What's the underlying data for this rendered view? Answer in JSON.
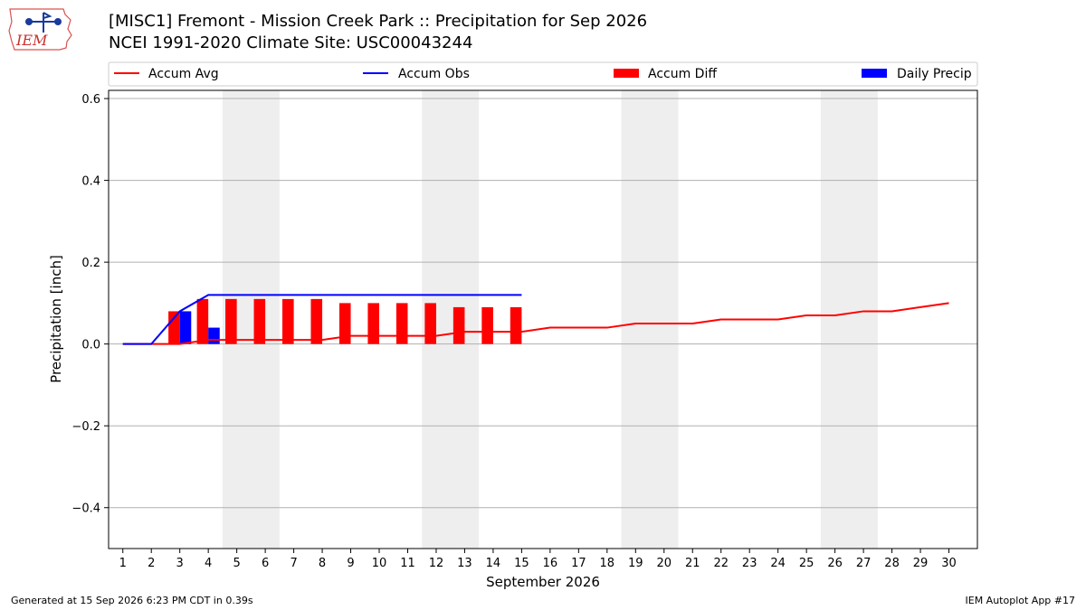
{
  "header": {
    "logo_text": "IEM",
    "title_line1": "[MISC1] Fremont - Mission Creek Park :: Precipitation for Sep 2026",
    "title_line2": "NCEI 1991-2020 Climate Site: USC00043244"
  },
  "footer": {
    "left": "Generated at 15 Sep 2026 6:23 PM CDT in 0.39s",
    "right": "IEM Autoplot App #17"
  },
  "colors": {
    "accum_avg": "#ff0000",
    "accum_obs": "#0000ff",
    "accum_diff": "#ff0000",
    "daily_precip": "#0000ff",
    "weekend_shade": "#eeeeee",
    "grid": "#b0b0b0"
  },
  "chart_data": {
    "type": "bar",
    "xlabel": "September 2026",
    "ylabel": "Precipitation [inch]",
    "xlim": [
      0.5,
      31
    ],
    "ylim": [
      -0.5,
      0.62
    ],
    "yticks": [
      -0.4,
      -0.2,
      0.0,
      0.2,
      0.4,
      0.6
    ],
    "ytick_labels": [
      "−0.4",
      "−0.2",
      "0.0",
      "0.2",
      "0.4",
      "0.6"
    ],
    "xticks": [
      1,
      2,
      3,
      4,
      5,
      6,
      7,
      8,
      9,
      10,
      11,
      12,
      13,
      14,
      15,
      16,
      17,
      18,
      19,
      20,
      21,
      22,
      23,
      24,
      25,
      26,
      27,
      28,
      29,
      30
    ],
    "grid": "horizontal",
    "legend_placement": "top",
    "weekend_shaded_days": [
      [
        5,
        6
      ],
      [
        12,
        13
      ],
      [
        19,
        20
      ],
      [
        26,
        27
      ]
    ],
    "series": [
      {
        "name": "Accum Avg",
        "type": "line",
        "x": [
          1,
          2,
          3,
          4,
          5,
          6,
          7,
          8,
          9,
          10,
          11,
          12,
          13,
          14,
          15,
          16,
          17,
          18,
          19,
          20,
          21,
          22,
          23,
          24,
          25,
          26,
          27,
          28,
          29,
          30
        ],
        "values": [
          0.0,
          0.0,
          0.0,
          0.01,
          0.01,
          0.01,
          0.01,
          0.01,
          0.02,
          0.02,
          0.02,
          0.02,
          0.03,
          0.03,
          0.03,
          0.04,
          0.04,
          0.04,
          0.05,
          0.05,
          0.05,
          0.06,
          0.06,
          0.06,
          0.07,
          0.07,
          0.08,
          0.08,
          0.09,
          0.1
        ]
      },
      {
        "name": "Accum Obs",
        "type": "line",
        "x": [
          1,
          2,
          3,
          4,
          5,
          6,
          7,
          8,
          9,
          10,
          11,
          12,
          13,
          14,
          15
        ],
        "values": [
          0.0,
          0.0,
          0.08,
          0.12,
          0.12,
          0.12,
          0.12,
          0.12,
          0.12,
          0.12,
          0.12,
          0.12,
          0.12,
          0.12,
          0.12
        ]
      },
      {
        "name": "Accum Diff",
        "type": "bar",
        "x": [
          1,
          2,
          3,
          4,
          5,
          6,
          7,
          8,
          9,
          10,
          11,
          12,
          13,
          14,
          15
        ],
        "values": [
          0.0,
          0.0,
          0.08,
          0.11,
          0.11,
          0.11,
          0.11,
          0.11,
          0.1,
          0.1,
          0.1,
          0.1,
          0.09,
          0.09,
          0.09
        ]
      },
      {
        "name": "Daily Precip",
        "type": "bar",
        "x": [
          1,
          2,
          3,
          4,
          5,
          6,
          7,
          8,
          9,
          10,
          11,
          12,
          13,
          14,
          15
        ],
        "values": [
          0.0,
          0.0,
          0.08,
          0.04,
          0.0,
          0.0,
          0.0,
          0.0,
          0.0,
          0.0,
          0.0,
          0.0,
          0.0,
          0.0,
          0.0
        ]
      }
    ]
  }
}
